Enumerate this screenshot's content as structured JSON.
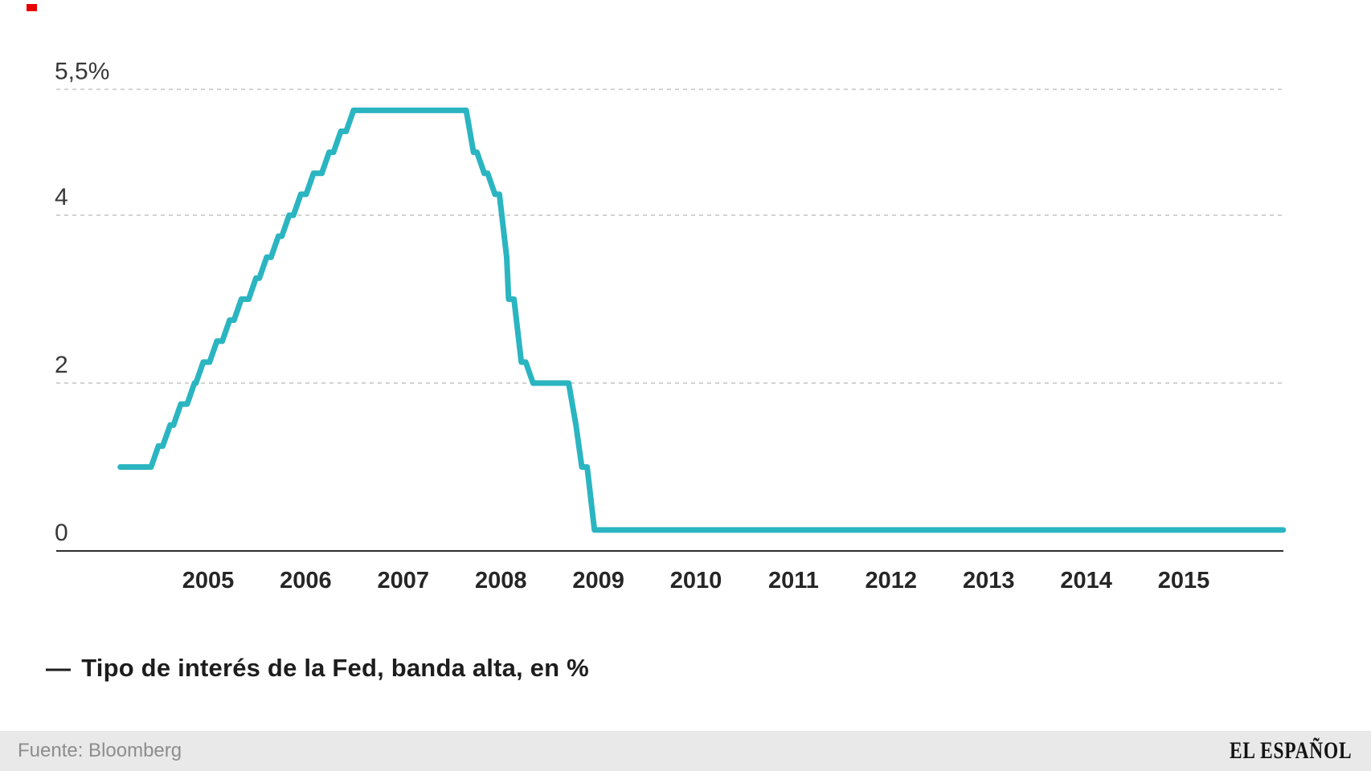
{
  "brand": {
    "corner_mark_color": "#e60000"
  },
  "legend": {
    "marker": "—",
    "label": "Tipo de interés de la Fed, banda alta, en %"
  },
  "footer": {
    "source": "Fuente: Bloomberg",
    "brand": "EL ESPAÑOL"
  },
  "chart_data": {
    "type": "line",
    "title": "",
    "series_name": "Tipo de interés de la Fed, banda alta, en %",
    "line_color": "#2ab5c1",
    "grid_color": "#cccccc",
    "axis_color": "#2e2e2e",
    "label_color": "#383838",
    "x_label_color": "#262626",
    "grid": "dashed horizontal",
    "legend_position": "bottom-left",
    "ylim": [
      0,
      5.5
    ],
    "y_ticks": [
      {
        "label": "5,5%",
        "value": 5.5,
        "dashed": true
      },
      {
        "label": "4",
        "value": 4,
        "dashed": true
      },
      {
        "label": "2",
        "value": 2,
        "dashed": true
      },
      {
        "label": "0",
        "value": 0,
        "dashed": false
      }
    ],
    "x_ticks": [
      "2005",
      "2006",
      "2007",
      "2008",
      "2009",
      "2010",
      "2011",
      "2012",
      "2013",
      "2014",
      "2015"
    ],
    "x_tick_values": [
      2005,
      2006,
      2007,
      2008,
      2009,
      2010,
      2011,
      2012,
      2013,
      2014,
      2015
    ],
    "x_range": [
      2003.45,
      2016.02
    ],
    "steps_note": "rate changes as [decimal_year, upper_band_percent]; value holds until next change",
    "steps": [
      [
        2004.1,
        1.0
      ],
      [
        2004.49,
        1.25
      ],
      [
        2004.61,
        1.5
      ],
      [
        2004.72,
        1.75
      ],
      [
        2004.86,
        2.0
      ],
      [
        2004.95,
        2.25
      ],
      [
        2005.09,
        2.5
      ],
      [
        2005.22,
        2.75
      ],
      [
        2005.34,
        3.0
      ],
      [
        2005.49,
        3.25
      ],
      [
        2005.6,
        3.5
      ],
      [
        2005.72,
        3.75
      ],
      [
        2005.83,
        4.0
      ],
      [
        2005.95,
        4.25
      ],
      [
        2006.08,
        4.5
      ],
      [
        2006.24,
        4.75
      ],
      [
        2006.36,
        5.0
      ],
      [
        2006.49,
        5.25
      ],
      [
        2007.72,
        4.75
      ],
      [
        2007.83,
        4.5
      ],
      [
        2007.94,
        4.25
      ],
      [
        2008.06,
        3.5
      ],
      [
        2008.08,
        3.0
      ],
      [
        2008.21,
        2.25
      ],
      [
        2008.33,
        2.0
      ],
      [
        2008.77,
        1.5
      ],
      [
        2008.83,
        1.0
      ],
      [
        2008.96,
        0.25
      ]
    ],
    "end_year": 2016.02
  }
}
